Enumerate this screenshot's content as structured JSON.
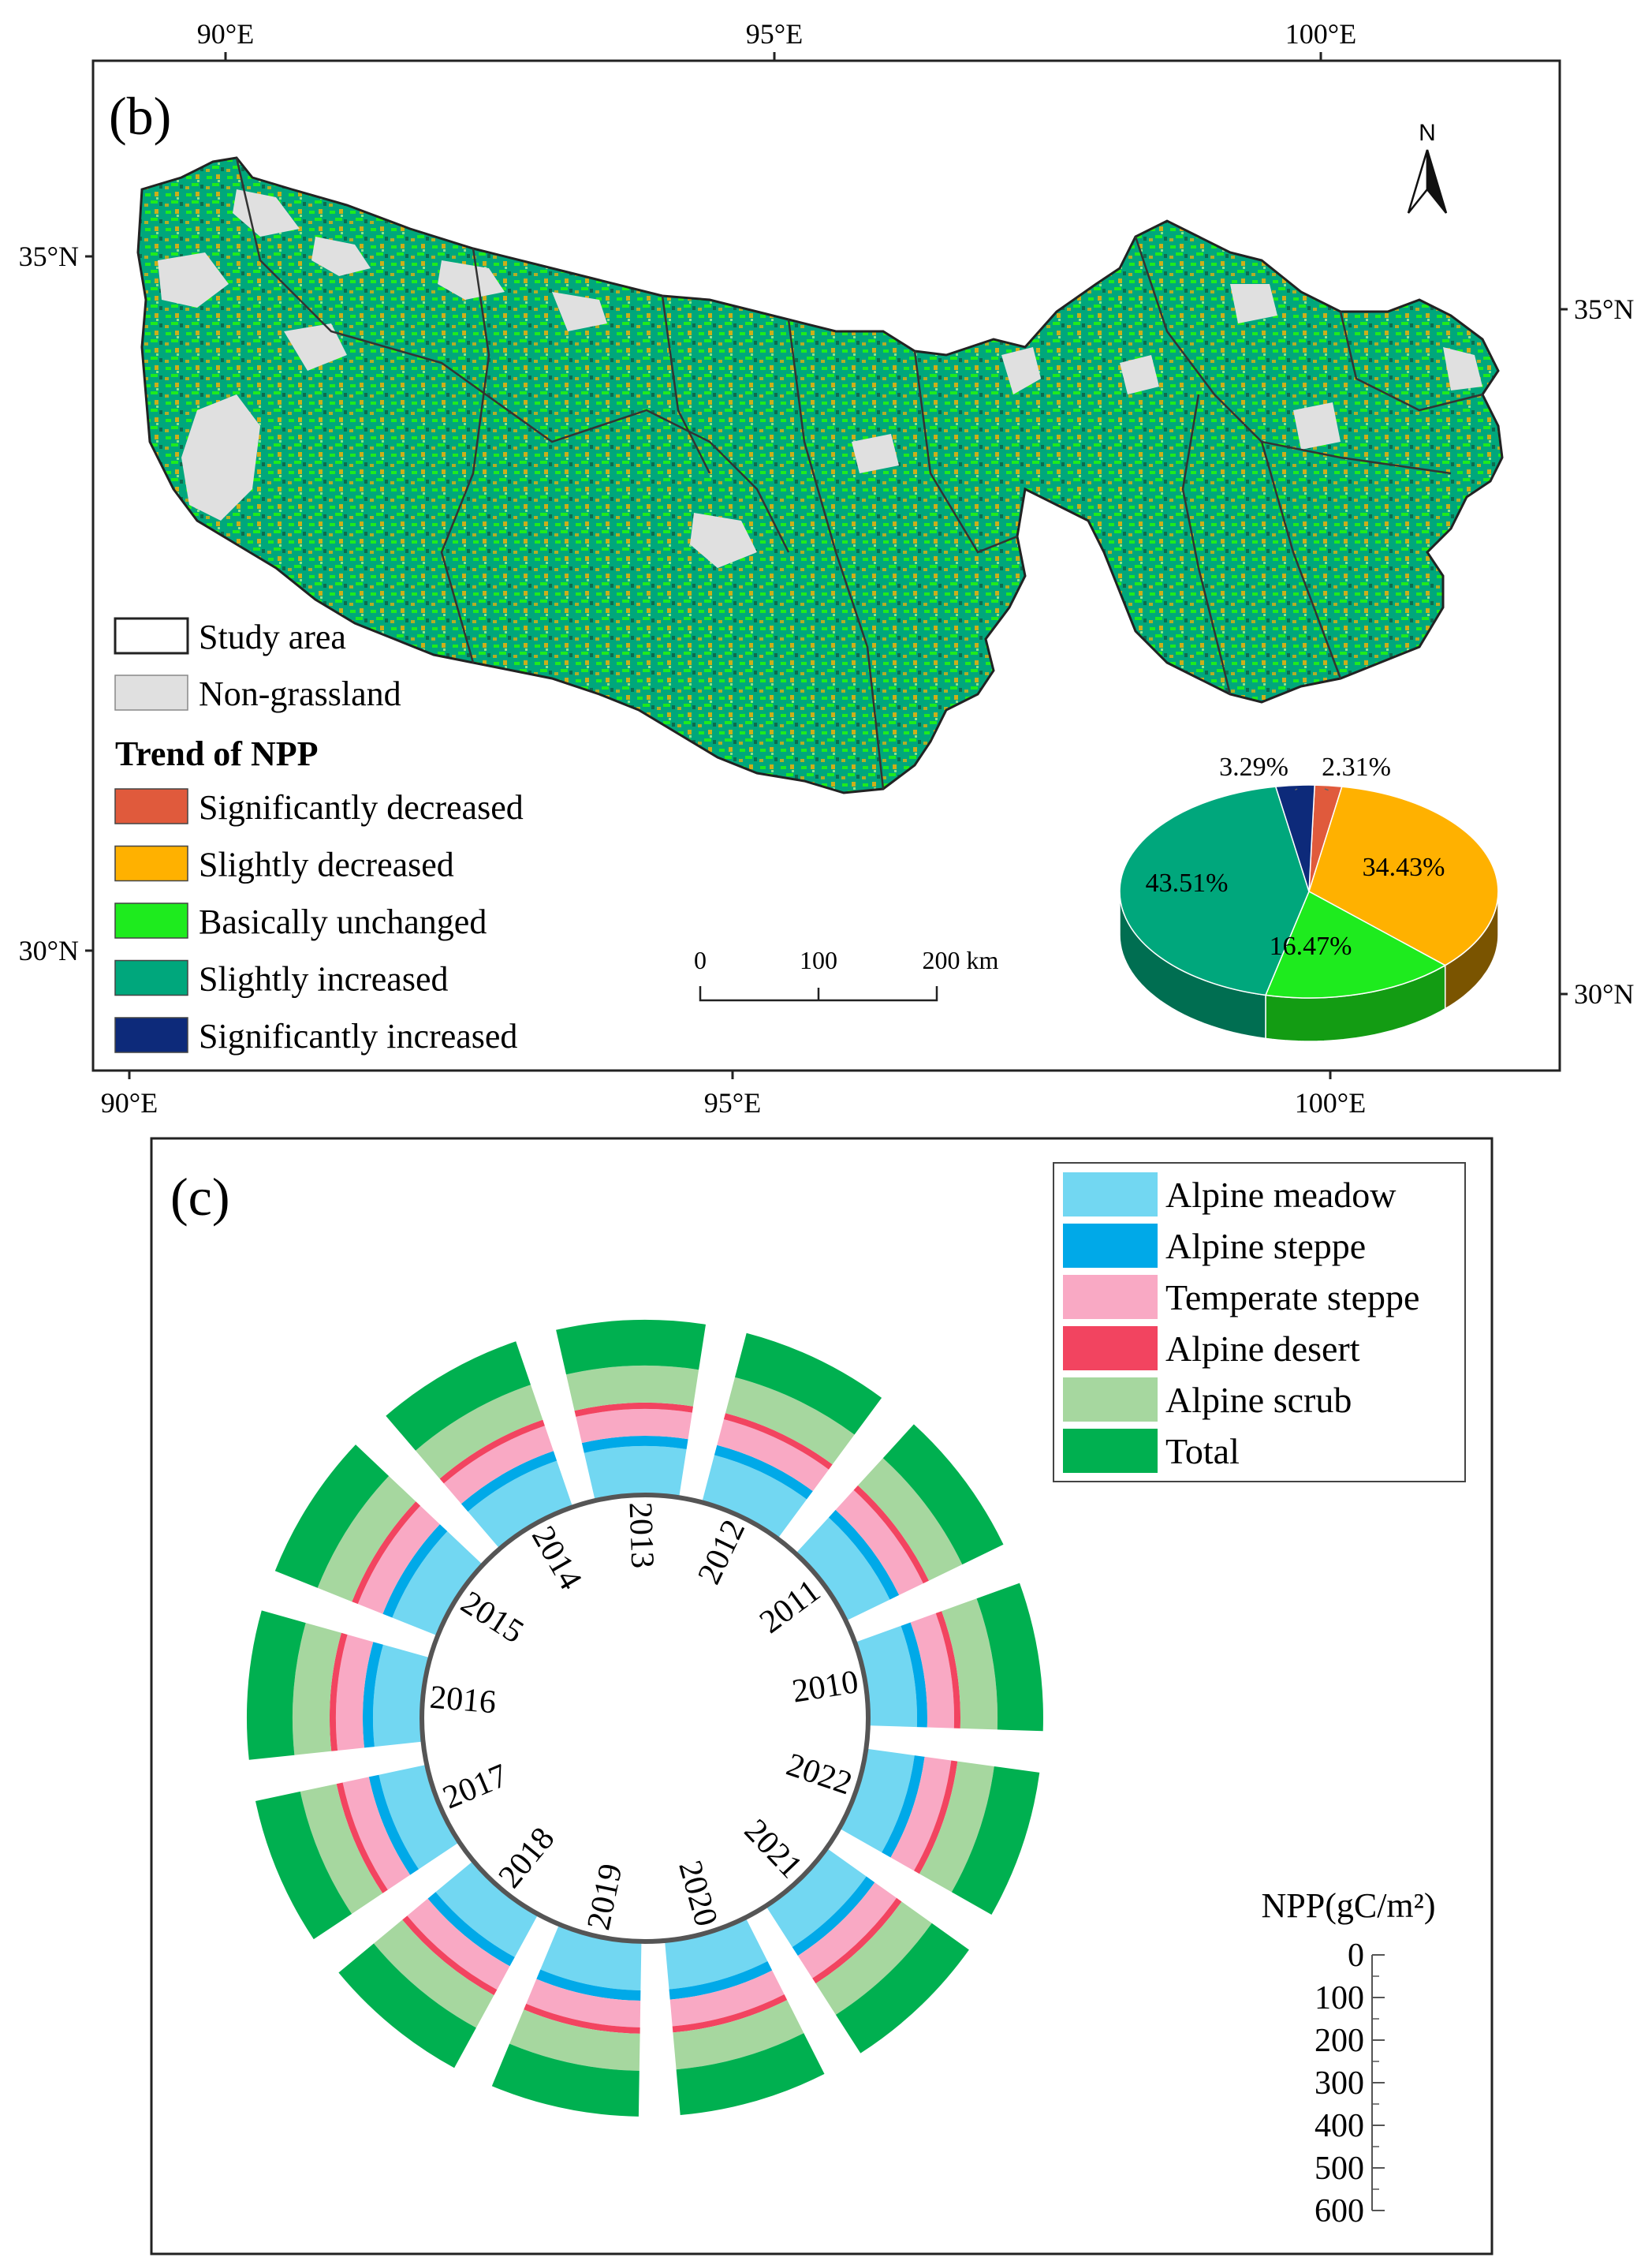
{
  "panel_b": {
    "label": "(b)",
    "north_arrow": "N",
    "top_lon_ticks": [
      "90°E",
      "95°E",
      "100°E"
    ],
    "bottom_lon_ticks": [
      "90°E",
      "95°E",
      "100°E"
    ],
    "left_lat_ticks": [
      "35°N",
      "30°N"
    ],
    "right_lat_ticks": [
      "35°N",
      "30°N"
    ],
    "legend": {
      "study_area": "Study area",
      "non_grassland": "Non-grassland",
      "trend_title": "Trend of NPP",
      "classes": [
        {
          "label": "Significantly decreased",
          "color": "#e05a3c"
        },
        {
          "label": "Slightly decreased",
          "color": "#ffb100"
        },
        {
          "label": "Basically unchanged",
          "color": "#1eeb1e"
        },
        {
          "label": "Slightly increased",
          "color": "#00a77c"
        },
        {
          "label": "Significantly increased",
          "color": "#0d2a7a"
        }
      ]
    },
    "scale_bar": {
      "labels": [
        "0",
        "100",
        "200 km"
      ]
    },
    "pie": {
      "labels": [
        "2.31%",
        "34.43%",
        "16.47%",
        "43.51%",
        "3.29%"
      ],
      "values": [
        2.31,
        34.43,
        16.47,
        43.51,
        3.29
      ],
      "colors": [
        "#e05a3c",
        "#ffb100",
        "#1eeb1e",
        "#00a77c",
        "#0d2a7a"
      ],
      "side_colors": [
        "#a8402a",
        "#7a5400",
        "#139c13",
        "#006e51",
        "#071a4e"
      ]
    }
  },
  "panel_c": {
    "label": "(c)",
    "legend": [
      {
        "label": "Alpine meadow",
        "color": "#72d7f2"
      },
      {
        "label": "Alpine steppe",
        "color": "#00a9e8"
      },
      {
        "label": "Temperate steppe",
        "color": "#f9a9c4"
      },
      {
        "label": "Alpine desert",
        "color": "#f24460"
      },
      {
        "label": "Alpine scrub",
        "color": "#a6d79f"
      },
      {
        "label": "Total",
        "color": "#00b050"
      }
    ],
    "years": [
      "2010",
      "2011",
      "2012",
      "2013",
      "2014",
      "2015",
      "2016",
      "2017",
      "2018",
      "2019",
      "2020",
      "2021",
      "2022"
    ],
    "scale_title": "NPP(gC/m²)",
    "scale_ticks": [
      "0",
      "100",
      "200",
      "300",
      "400",
      "500",
      "600"
    ]
  }
}
